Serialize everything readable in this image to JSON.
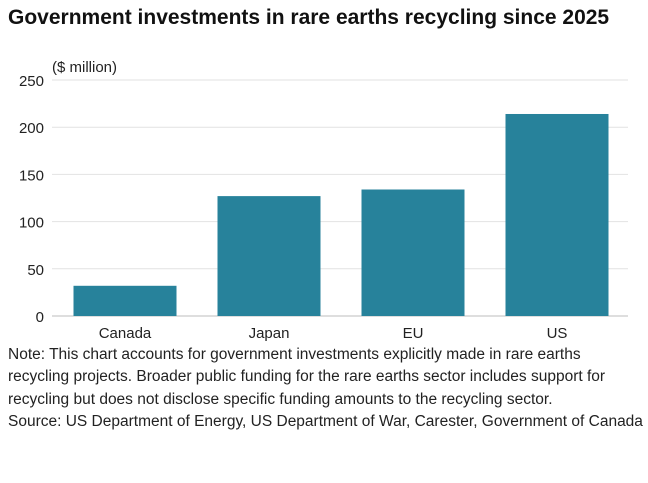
{
  "chart_data": {
    "type": "bar",
    "title": "Government investments in rare earths recycling since 2025",
    "ylabel": "($ million)",
    "xlabel": "",
    "categories": [
      "Canada",
      "Japan",
      "EU",
      "US"
    ],
    "values": [
      32,
      127,
      134,
      214
    ],
    "ylim": [
      0,
      250
    ],
    "yticks": [
      0,
      50,
      100,
      150,
      200,
      250
    ],
    "grid": true,
    "bar_color": "#27829b",
    "grid_color": "#e2e2e2",
    "axis_color": "#bdbdbd"
  },
  "note": "Note: This chart accounts for government investments explicitly made in rare earths recycling projects. Broader public funding for the rare earths sector includes support for recycling but does not disclose specific funding amounts to the recycling sector.",
  "source": "Source: US Department of Energy, US Department of War, Carester, Government of Canada"
}
